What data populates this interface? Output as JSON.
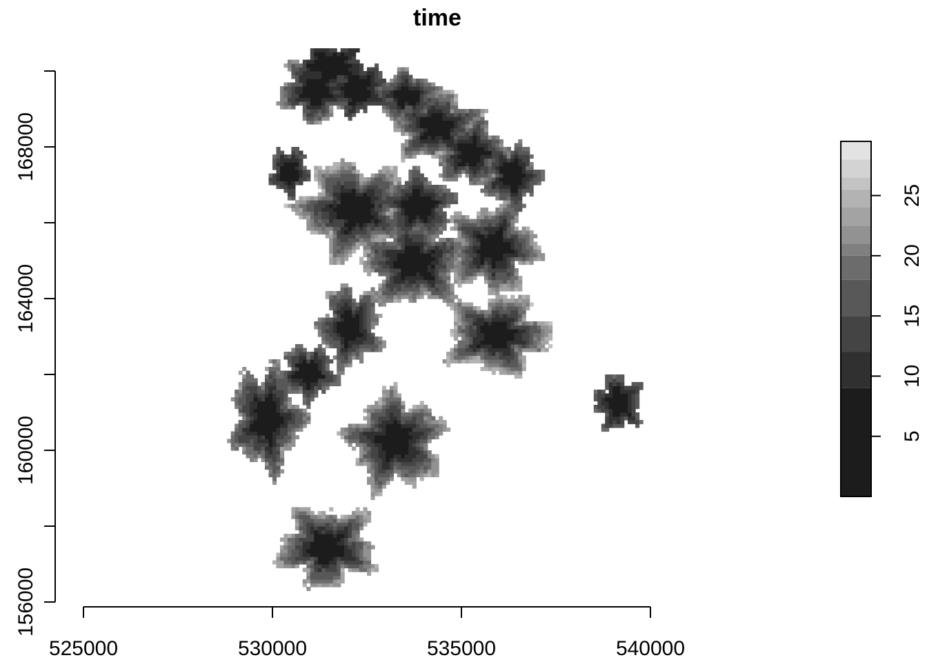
{
  "chart_data": {
    "type": "heatmap",
    "title": "time",
    "xlabel": "",
    "ylabel": "",
    "xlim": [
      525000,
      540000
    ],
    "ylim": [
      156000,
      170000
    ],
    "x_ticks": [
      525000,
      530000,
      535000,
      540000
    ],
    "x_tick_labels": [
      "525000",
      "530000",
      "535000",
      "540000"
    ],
    "y_ticks": [
      156000,
      160000,
      164000,
      168000
    ],
    "y_tick_labels": [
      "156000",
      "160000",
      "164000",
      "168000"
    ],
    "y_minor_ticks": [
      158000,
      162000,
      166000,
      170000
    ],
    "legend": {
      "placement": "right",
      "min": 0,
      "max": 29.5,
      "breaks": [
        0,
        9,
        12,
        15,
        18,
        20,
        21,
        22.5,
        24,
        25.5,
        26.5,
        28,
        29.5
      ],
      "colors": [
        "#1c1c1c",
        "#303030",
        "#444444",
        "#585858",
        "#6c6c6c",
        "#808080",
        "#929292",
        "#a3a3a3",
        "#b3b3b3",
        "#c3c3c3",
        "#d3d3d3",
        "#e3e3e3"
      ],
      "ticks": [
        5,
        10,
        15,
        20,
        25
      ],
      "tick_labels": [
        "5",
        "10",
        "15",
        "20",
        "25"
      ]
    },
    "clusters": [
      {
        "x": 531100,
        "y": 169450,
        "rx": 900,
        "ry": 800,
        "max": 22
      },
      {
        "x": 532200,
        "y": 169500,
        "rx": 700,
        "ry": 650,
        "max": 16
      },
      {
        "x": 531500,
        "y": 170100,
        "rx": 800,
        "ry": 500,
        "max": 14
      },
      {
        "x": 533500,
        "y": 169300,
        "rx": 800,
        "ry": 600,
        "max": 22
      },
      {
        "x": 534300,
        "y": 168500,
        "rx": 1100,
        "ry": 900,
        "max": 24
      },
      {
        "x": 535200,
        "y": 167800,
        "rx": 900,
        "ry": 800,
        "max": 22
      },
      {
        "x": 536300,
        "y": 167200,
        "rx": 700,
        "ry": 800,
        "max": 20
      },
      {
        "x": 530400,
        "y": 167300,
        "rx": 500,
        "ry": 600,
        "max": 18
      },
      {
        "x": 532100,
        "y": 166300,
        "rx": 1400,
        "ry": 1200,
        "max": 25
      },
      {
        "x": 533800,
        "y": 166400,
        "rx": 900,
        "ry": 800,
        "max": 20
      },
      {
        "x": 533700,
        "y": 164900,
        "rx": 1300,
        "ry": 1100,
        "max": 24
      },
      {
        "x": 535800,
        "y": 165300,
        "rx": 1100,
        "ry": 1100,
        "max": 24
      },
      {
        "x": 532000,
        "y": 163200,
        "rx": 800,
        "ry": 1000,
        "max": 22
      },
      {
        "x": 530900,
        "y": 162000,
        "rx": 700,
        "ry": 700,
        "max": 20
      },
      {
        "x": 535900,
        "y": 163000,
        "rx": 1300,
        "ry": 1000,
        "max": 25
      },
      {
        "x": 539100,
        "y": 161200,
        "rx": 600,
        "ry": 700,
        "max": 18
      },
      {
        "x": 529800,
        "y": 160800,
        "rx": 900,
        "ry": 1300,
        "max": 22
      },
      {
        "x": 533200,
        "y": 160200,
        "rx": 1200,
        "ry": 1200,
        "max": 24
      },
      {
        "x": 531400,
        "y": 157400,
        "rx": 1200,
        "ry": 1000,
        "max": 24
      }
    ]
  }
}
